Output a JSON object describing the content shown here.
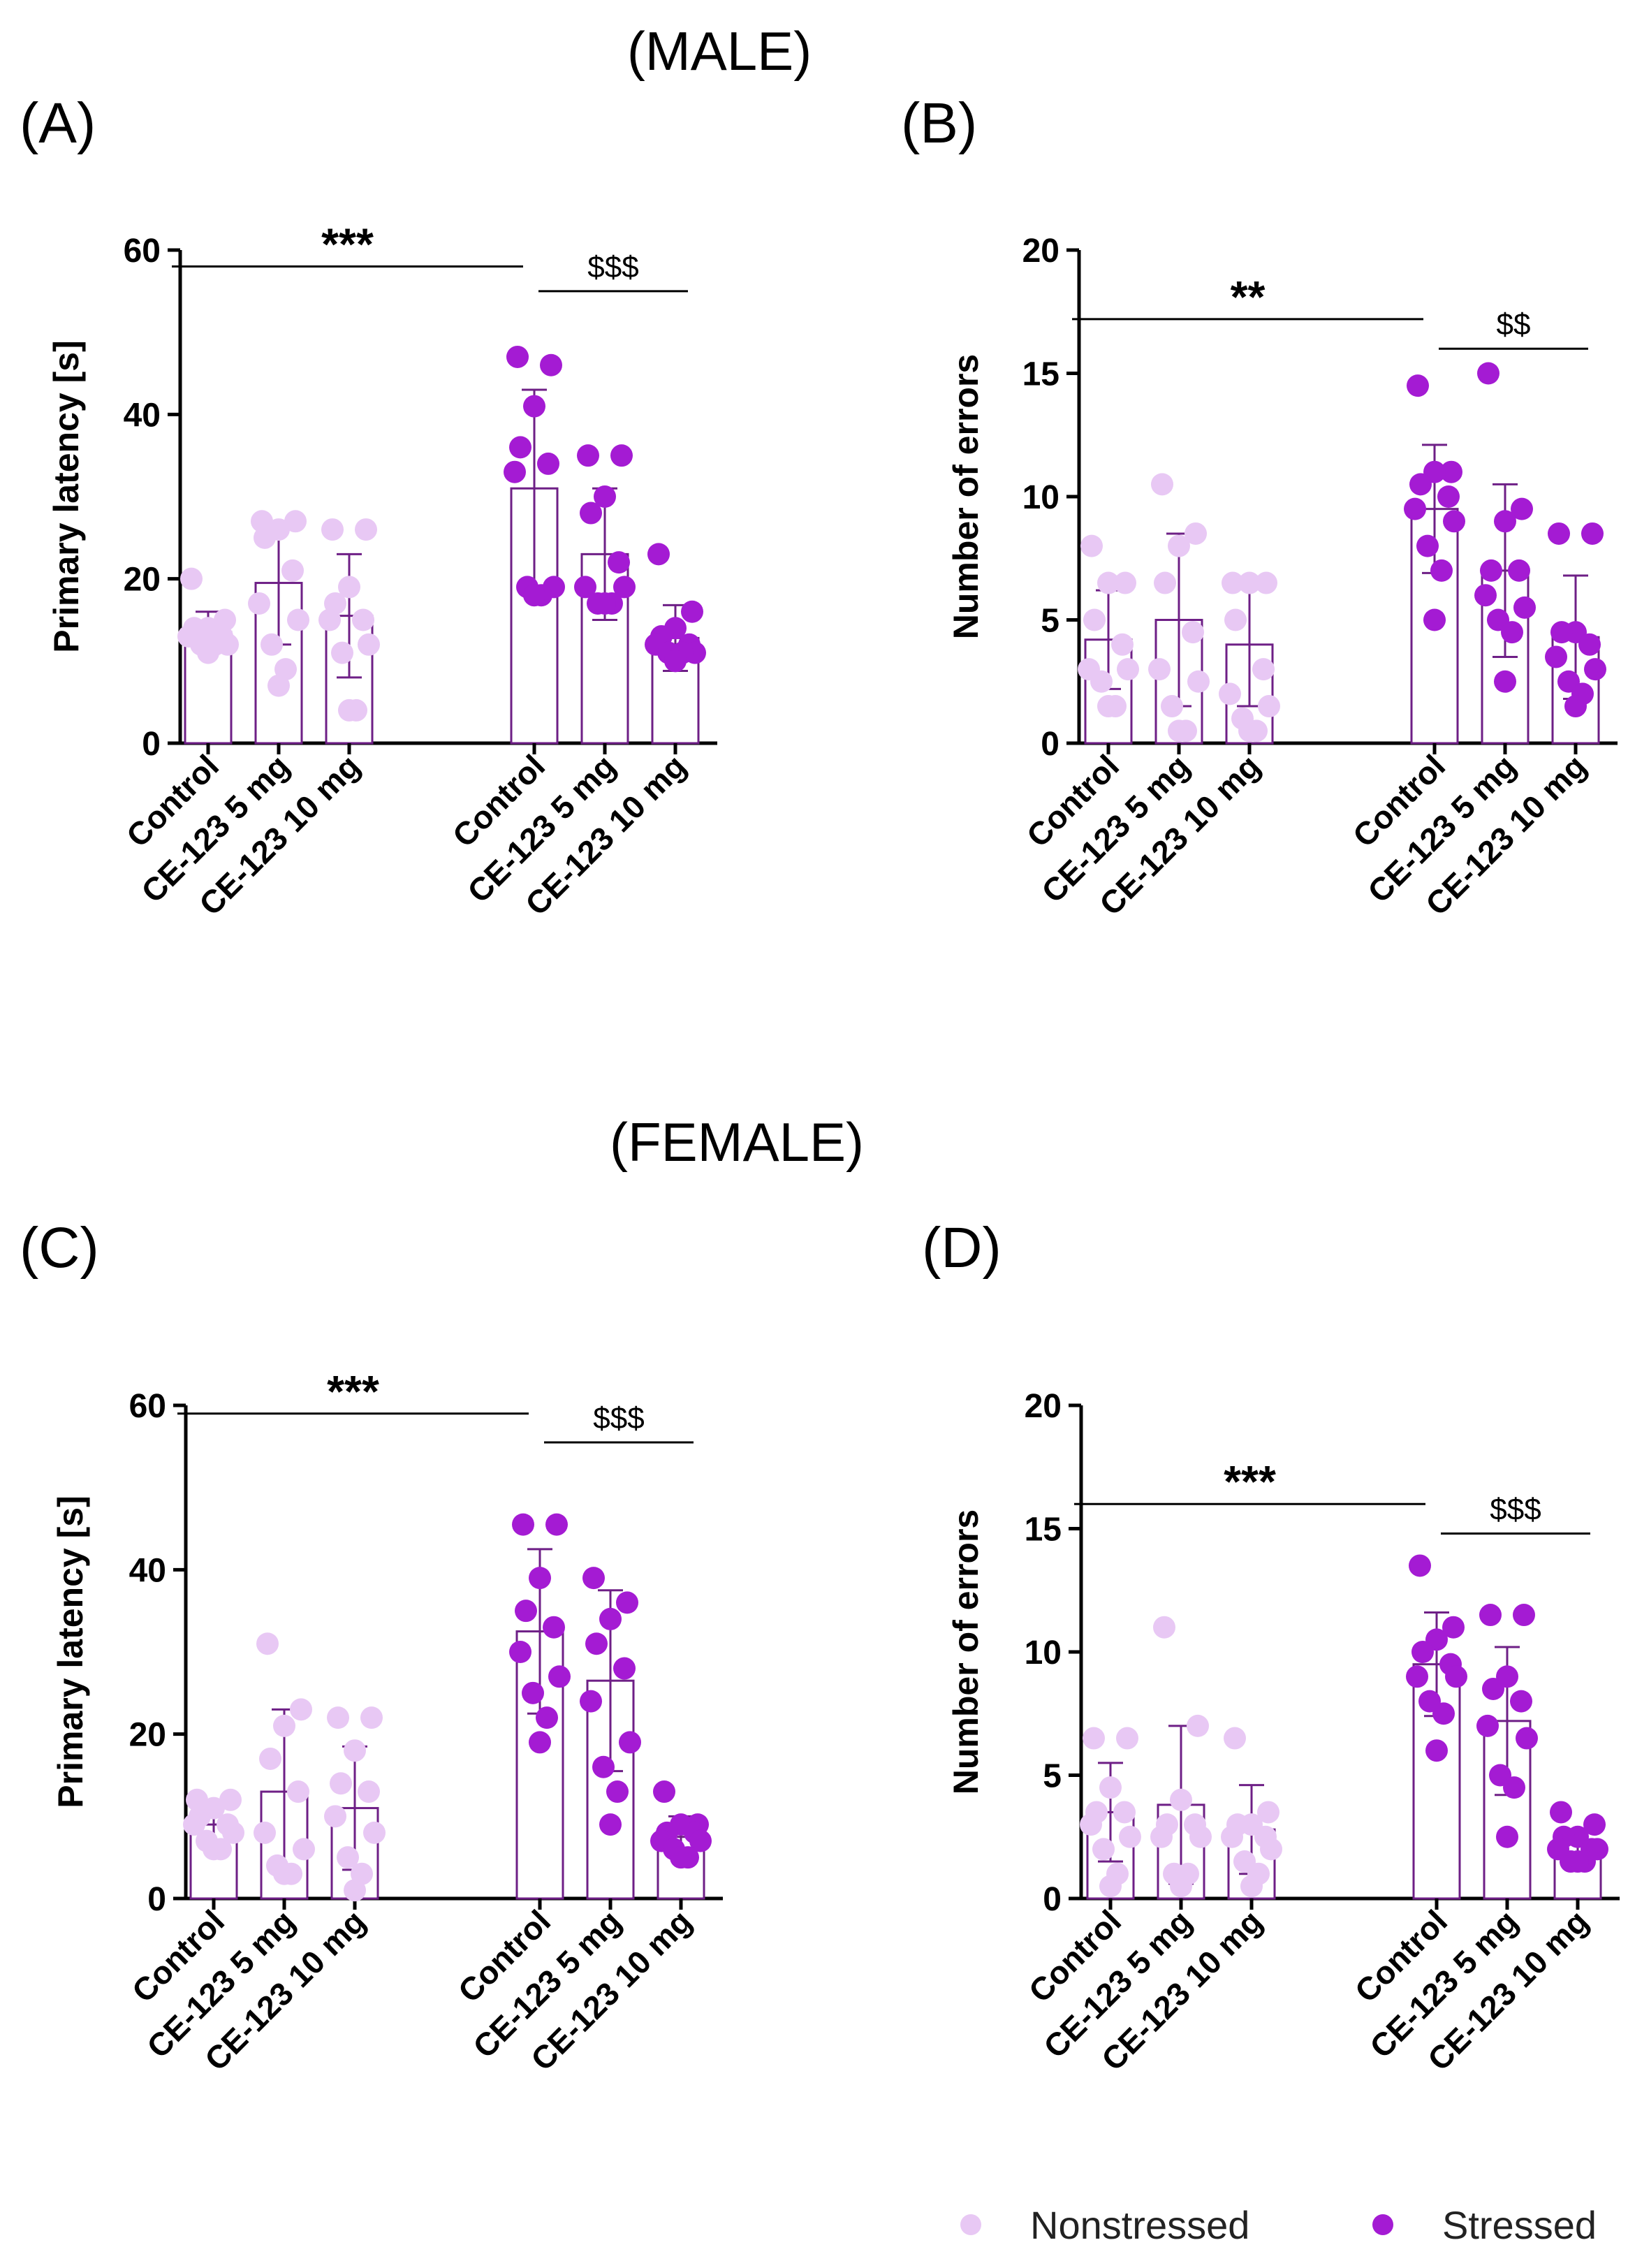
{
  "figure": {
    "male_title": "(MALE)",
    "female_title": "(FEMALE)"
  },
  "colors": {
    "nonstressed": "#E8C8F4",
    "stressed": "#A41BD3",
    "frame": "#6E1F86",
    "axis": "#000000"
  },
  "legend": {
    "nonstressed_label": "Nonstressed",
    "stressed_label": "Stressed"
  },
  "chart_data": [
    {
      "panel": "(A)",
      "type": "bar",
      "sex": "MALE",
      "ylabel": "Primary latency [s]",
      "ylim": [
        0,
        60
      ],
      "yticks": [
        0,
        20,
        40,
        60
      ],
      "categories": [
        "Control",
        "CE-123 5 mg",
        "CE-123 10 mg",
        "Control",
        "CE-123 5 mg",
        "CE-123 10 mg"
      ],
      "groups": [
        "Nonstressed",
        "Nonstressed",
        "Nonstressed",
        "Stressed",
        "Stressed",
        "Stressed"
      ],
      "means": [
        13.5,
        19.5,
        15.5,
        31.0,
        23.0,
        12.8
      ],
      "sd": [
        2.5,
        7.5,
        7.5,
        12.0,
        8.0,
        4.0
      ],
      "points": [
        [
          20,
          15,
          14,
          14,
          13,
          13,
          12,
          12,
          12,
          11
        ],
        [
          27,
          27,
          26,
          25,
          21,
          17,
          15,
          12,
          9,
          7
        ],
        [
          26,
          26,
          19,
          17,
          15,
          15,
          12,
          11,
          4,
          4
        ],
        [
          47,
          46,
          41,
          36,
          34,
          33,
          19,
          19,
          18,
          18
        ],
        [
          35,
          35,
          30,
          28,
          22,
          19,
          19,
          17,
          17,
          17
        ],
        [
          23,
          16,
          14,
          13,
          12,
          12,
          11,
          11,
          11,
          10
        ]
      ],
      "annotations": [
        {
          "label": "***",
          "from": 0,
          "to": 3,
          "y": 58
        },
        {
          "label": "$$$",
          "from": 3,
          "to": 5,
          "y": 55
        }
      ]
    },
    {
      "panel": "(B)",
      "type": "bar",
      "sex": "MALE",
      "ylabel": "Number of errors",
      "ylim": [
        0,
        20
      ],
      "yticks": [
        0,
        5,
        10,
        15,
        20
      ],
      "categories": [
        "Control",
        "CE-123 5 mg",
        "CE-123 10 mg",
        "Control",
        "CE-123 5 mg",
        "CE-123 10 mg"
      ],
      "groups": [
        "Nonstressed",
        "Nonstressed",
        "Nonstressed",
        "Stressed",
        "Stressed",
        "Stressed"
      ],
      "means": [
        4.2,
        5.0,
        4.0,
        9.5,
        7.0,
        4.3
      ],
      "sd": [
        2.0,
        3.5,
        2.5,
        2.6,
        3.5,
        2.5
      ],
      "points": [
        [
          8,
          6.5,
          6.5,
          5,
          4,
          3,
          3,
          2.5,
          1.5,
          1.5
        ],
        [
          10.5,
          8.5,
          8,
          6.5,
          4.5,
          3,
          2.5,
          1.5,
          0.5,
          0.5
        ],
        [
          6.5,
          6.5,
          6.5,
          5,
          3,
          2,
          1.5,
          1,
          0.5,
          0.5
        ],
        [
          14.5,
          11,
          11,
          10.5,
          10,
          9.5,
          9,
          8,
          7,
          5
        ],
        [
          15,
          9.5,
          9,
          7,
          7,
          6,
          5.5,
          5,
          4.5,
          2.5
        ],
        [
          8.5,
          8.5,
          4.5,
          4.5,
          4,
          3.5,
          3,
          2.5,
          2,
          1.5
        ]
      ],
      "annotations": [
        {
          "label": "**",
          "from": 0,
          "to": 3,
          "y": 17.2
        },
        {
          "label": "$$",
          "from": 3,
          "to": 5,
          "y": 16.0
        }
      ]
    },
    {
      "panel": "(C)",
      "type": "bar",
      "sex": "FEMALE",
      "ylabel": "Primary latency [s]",
      "ylim": [
        0,
        60
      ],
      "yticks": [
        0,
        20,
        40,
        60
      ],
      "categories": [
        "Control",
        "CE-123 5 mg",
        "CE-123 10 mg",
        "Control",
        "CE-123 5 mg",
        "CE-123 10 mg"
      ],
      "groups": [
        "Nonstressed",
        "Nonstressed",
        "Nonstressed",
        "Stressed",
        "Stressed",
        "Stressed"
      ],
      "means": [
        9.0,
        13.0,
        11.0,
        32.5,
        26.5,
        7.5
      ],
      "sd": [
        2.5,
        10.0,
        7.5,
        10.0,
        11.0,
        2.5
      ],
      "points": [
        [
          12,
          12,
          11,
          10,
          9,
          9,
          8,
          7,
          6,
          6
        ],
        [
          31,
          23,
          21,
          17,
          13,
          8,
          6,
          4,
          3,
          3
        ],
        [
          22,
          22,
          18,
          14,
          13,
          10,
          8,
          5,
          3,
          1
        ],
        [
          45.5,
          45.5,
          39,
          35,
          33,
          30,
          27,
          25,
          22,
          19
        ],
        [
          39,
          36,
          34,
          31,
          28,
          24,
          19,
          16,
          13,
          9
        ],
        [
          13,
          9,
          9,
          8,
          8,
          7,
          7,
          6,
          5,
          5
        ]
      ],
      "annotations": [
        {
          "label": "***",
          "from": 0,
          "to": 3,
          "y": 59
        },
        {
          "label": "$$$",
          "from": 3,
          "to": 5,
          "y": 55.5
        }
      ]
    },
    {
      "panel": "(D)",
      "type": "bar",
      "sex": "FEMALE",
      "ylabel": "Number of errors",
      "ylim": [
        0,
        20
      ],
      "yticks": [
        0,
        5,
        10,
        15,
        20
      ],
      "categories": [
        "Control",
        "CE-123 5 mg",
        "CE-123 10 mg",
        "Control",
        "CE-123 5 mg",
        "CE-123 10 mg"
      ],
      "groups": [
        "Nonstressed",
        "Nonstressed",
        "Nonstressed",
        "Stressed",
        "Stressed",
        "Stressed"
      ],
      "means": [
        3.5,
        3.8,
        2.8,
        9.5,
        7.2,
        2.2
      ],
      "sd": [
        2.0,
        3.2,
        1.8,
        2.1,
        3.0,
        0.6
      ],
      "points": [
        [
          6.5,
          6.5,
          4.5,
          3.5,
          3.5,
          3,
          2.5,
          2,
          1,
          0.5
        ],
        [
          11,
          7,
          4,
          3,
          3,
          2.5,
          2.5,
          1,
          1,
          0.5
        ],
        [
          6.5,
          3.5,
          3,
          3,
          2.5,
          2.5,
          2,
          1.5,
          1,
          0.5
        ],
        [
          13.5,
          11,
          10.5,
          10,
          9.5,
          9,
          9,
          8,
          7.5,
          6
        ],
        [
          11.5,
          11.5,
          9,
          8.5,
          8,
          7,
          6.5,
          5,
          4.5,
          2.5
        ],
        [
          3.5,
          3,
          2.5,
          2.5,
          2,
          2,
          2,
          1.5,
          1.5,
          1.5
        ]
      ],
      "annotations": [
        {
          "label": "***",
          "from": 0,
          "to": 3,
          "y": 16.0
        },
        {
          "label": "$$$",
          "from": 3,
          "to": 5,
          "y": 14.8
        }
      ]
    }
  ]
}
